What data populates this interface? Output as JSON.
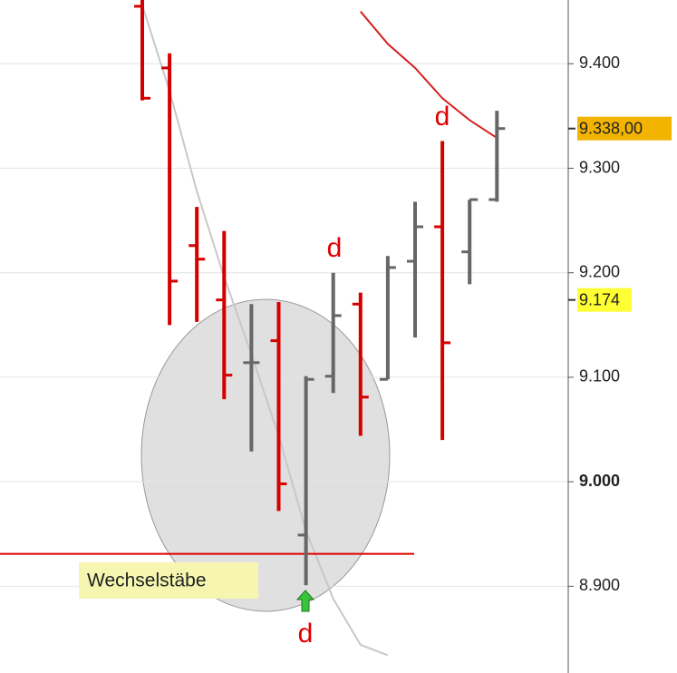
{
  "chart_data": {
    "type": "ohlc",
    "open": [
      9455,
      9396,
      9226,
      9174,
      9114,
      9135,
      8949,
      9101,
      9170,
      9098,
      9211,
      9244,
      9220,
      9270
    ],
    "high": [
      9461,
      9410,
      9263,
      9240,
      9170,
      9172,
      9101,
      9200,
      9181,
      9216,
      9268,
      9326,
      9270,
      9355
    ],
    "low": [
      9365,
      9150,
      9153,
      9079,
      9029,
      8972,
      8901,
      9085,
      9044,
      9098,
      9138,
      9040,
      9189,
      9268
    ],
    "close": [
      9367,
      9192,
      9213,
      9102,
      9114,
      8998,
      9098,
      9159,
      9081,
      9205,
      9244,
      9133,
      9270,
      9338
    ],
    "up_color": "#666666",
    "down_color": "#d40000",
    "lines": [
      {
        "color": "#c8c8c8",
        "values": [
          9456,
          9374,
          9278,
          9196,
          9122,
          9044,
          8953,
          8888,
          8844,
          8834,
          null,
          null,
          null,
          null
        ]
      },
      {
        "color": "#d42020",
        "values": [
          null,
          null,
          null,
          null,
          null,
          null,
          null,
          null,
          9450,
          9419,
          9396,
          9367,
          9346,
          9329
        ]
      }
    ],
    "hlines": [
      {
        "value": 8931,
        "color": "#e00000"
      }
    ],
    "price_labels": [
      {
        "value": 9338,
        "label": "9.338,00",
        "color": "#f2b400"
      },
      {
        "value": 9174,
        "label": "9.174",
        "color": "#ffff33"
      }
    ],
    "annotations": [
      "d",
      "d",
      "d",
      "Wechselstäbe"
    ],
    "ylim": [
      8817,
      9461
    ],
    "yticks": [
      {
        "value": 8900,
        "label": "8.900"
      },
      {
        "value": 9000,
        "label": "9.000"
      },
      {
        "value": 9100,
        "label": "9.100"
      },
      {
        "value": 9200,
        "label": "9.200"
      },
      {
        "value": 9300,
        "label": "9.300"
      },
      {
        "value": 9400,
        "label": "9.400"
      }
    ],
    "grid": true
  }
}
